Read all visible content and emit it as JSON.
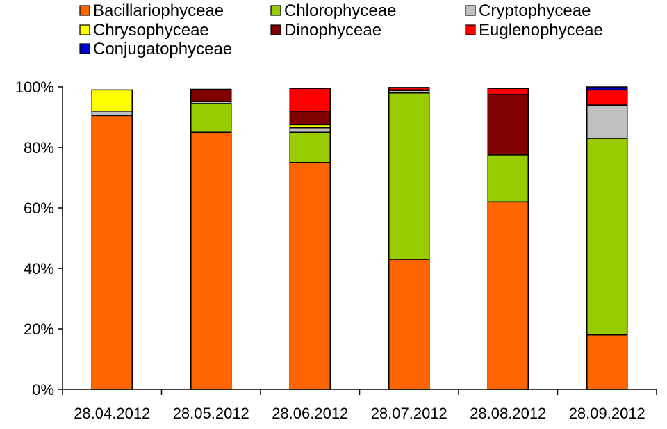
{
  "chart_data": {
    "type": "bar",
    "stacked": true,
    "title": "",
    "xlabel": "",
    "ylabel": "",
    "ylim": [
      0,
      100
    ],
    "yticks": [
      0,
      20,
      40,
      60,
      80,
      100
    ],
    "ytick_labels": [
      "0%",
      "20%",
      "40%",
      "60%",
      "80%",
      "100%"
    ],
    "legend_position": "top",
    "grid": false,
    "categories": [
      "28.04.2012",
      "28.05.2012",
      "28.06.2012",
      "28.07.2012",
      "28.08.2012",
      "28.09.2012"
    ],
    "series": [
      {
        "name": "Bacillariophyceae",
        "color": "#ff6600",
        "values": [
          90.5,
          85,
          75,
          43,
          62,
          18
        ]
      },
      {
        "name": "Chlorophyceae",
        "color": "#99cc00",
        "values": [
          0,
          9.5,
          10,
          55,
          15.5,
          65
        ]
      },
      {
        "name": "Cryptophyceae",
        "color": "#c0c0c0",
        "values": [
          1.5,
          0.7,
          1.5,
          0.8,
          0,
          11
        ]
      },
      {
        "name": "Chrysophyceae",
        "color": "#ffff00",
        "values": [
          7,
          0,
          1,
          0,
          0,
          0
        ]
      },
      {
        "name": "Dinophyceae",
        "color": "#800000",
        "values": [
          0,
          4,
          4.5,
          0.2,
          20,
          0
        ]
      },
      {
        "name": "Euglenophyceae",
        "color": "#ff0000",
        "values": [
          0,
          0,
          7.5,
          0.8,
          2,
          5
        ]
      },
      {
        "name": "Conjugatophyceae",
        "color": "#0000cc",
        "values": [
          0,
          0,
          0,
          0,
          0,
          1
        ]
      }
    ]
  }
}
